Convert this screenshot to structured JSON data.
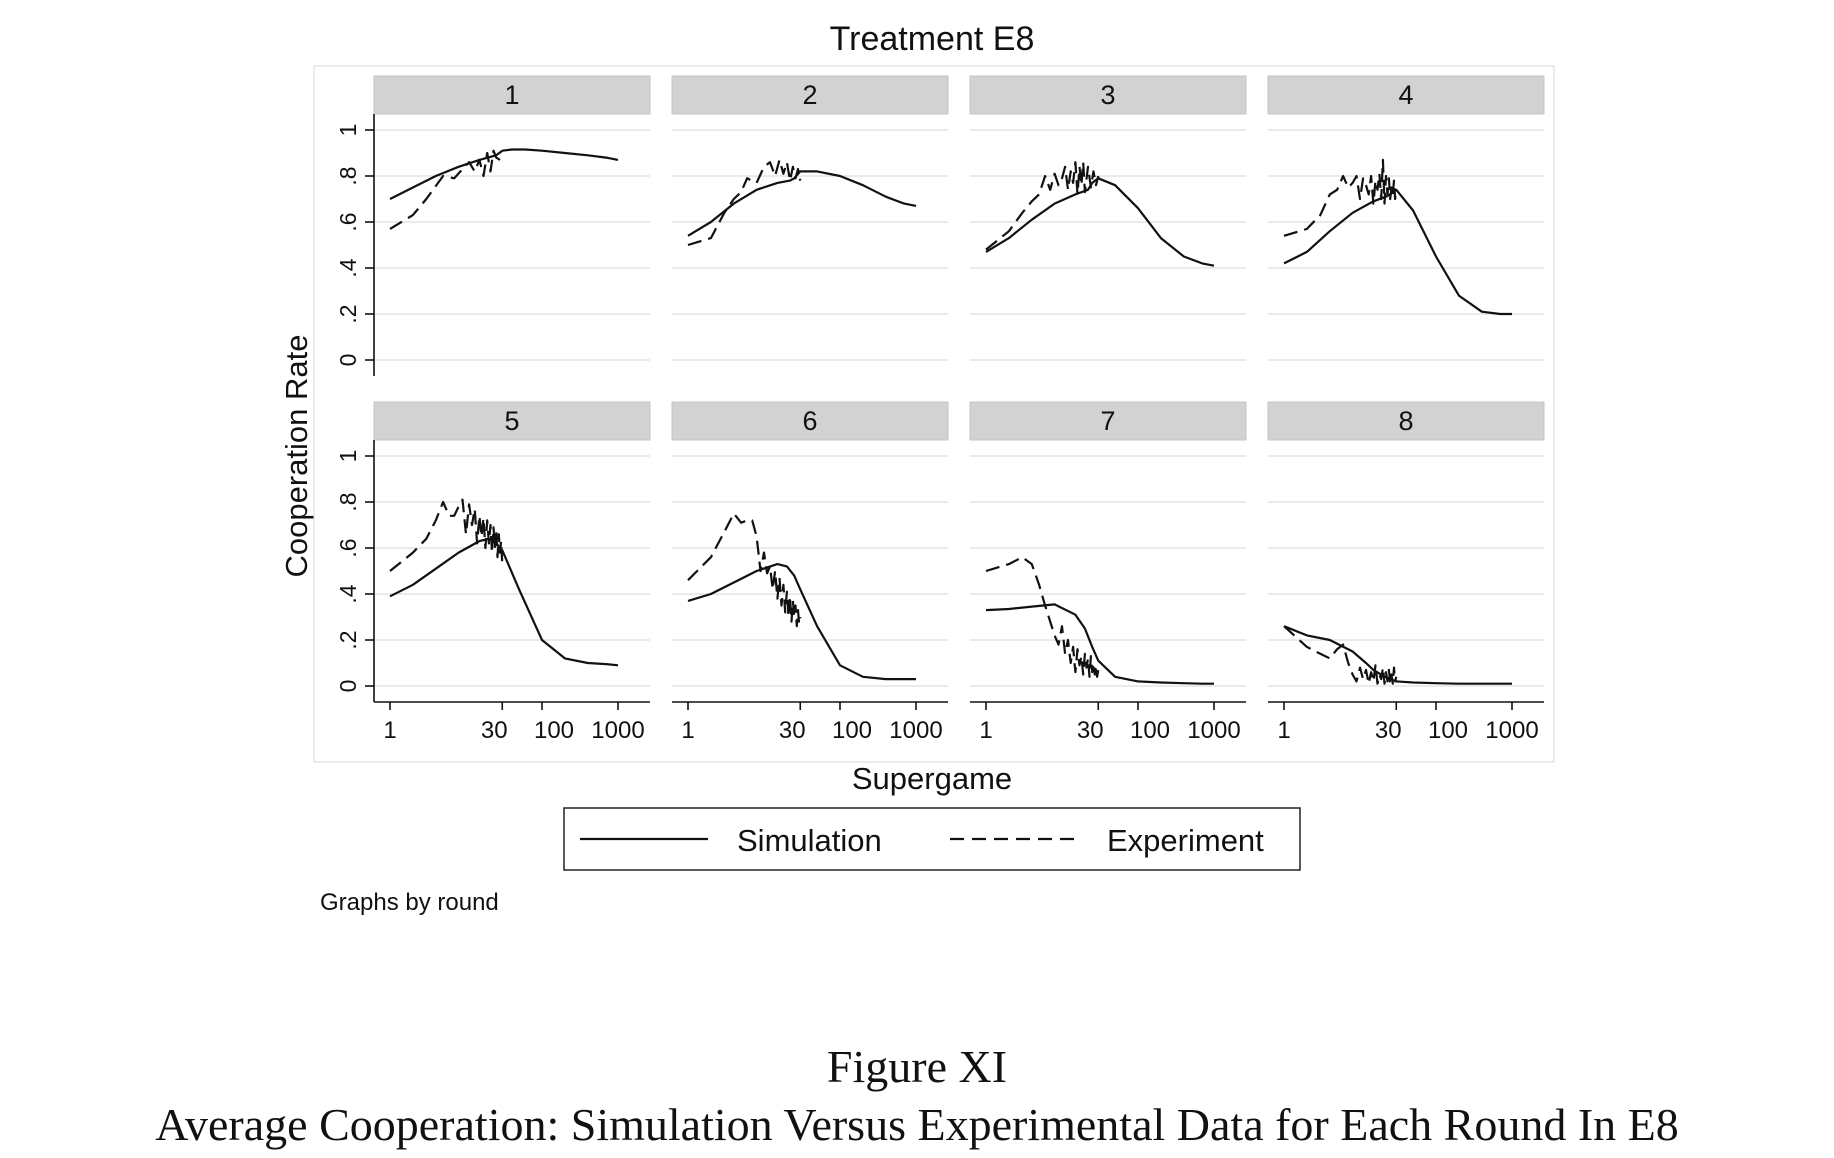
{
  "chart_data": {
    "type": "line",
    "title": "Treatment E8",
    "xlabel": "Supergame",
    "ylabel": "Cooperation Rate",
    "x_scale": "log",
    "xlim": [
      1,
      1000
    ],
    "ylim": [
      0,
      1
    ],
    "x_ticks": [
      1,
      30,
      100,
      1000
    ],
    "x_tick_labels": [
      "1",
      "30",
      "100",
      "1000"
    ],
    "y_ticks": [
      0,
      0.2,
      0.4,
      0.6,
      0.8,
      1
    ],
    "y_tick_labels": [
      "0",
      ".2",
      ".4",
      ".6",
      ".8",
      "1"
    ],
    "grid": true,
    "legend": {
      "placement": "bottom",
      "entries": [
        {
          "label": "Simulation",
          "style": "solid"
        },
        {
          "label": "Experiment",
          "style": "dashed"
        }
      ]
    },
    "note": "Graphs by round",
    "panels": [
      {
        "label": "1",
        "series": [
          {
            "name": "Simulation",
            "x": [
              1,
              2,
              4,
              8,
              15,
              25,
              30,
              40,
              60,
              100,
              200,
              400,
              700,
              1000
            ],
            "y": [
              0.7,
              0.75,
              0.8,
              0.84,
              0.87,
              0.89,
              0.91,
              0.915,
              0.915,
              0.91,
              0.9,
              0.89,
              0.88,
              0.87
            ]
          },
          {
            "name": "Experiment",
            "x": [
              1,
              2,
              3,
              5,
              7,
              9,
              11,
              13,
              15,
              17,
              19,
              21,
              23,
              25,
              28
            ],
            "y": [
              0.57,
              0.63,
              0.7,
              0.8,
              0.79,
              0.83,
              0.86,
              0.82,
              0.87,
              0.8,
              0.9,
              0.82,
              0.91,
              0.88,
              0.87
            ]
          }
        ]
      },
      {
        "label": "2",
        "series": [
          {
            "name": "Simulation",
            "x": [
              1,
              2,
              4,
              8,
              15,
              22,
              25,
              30,
              50,
              100,
              200,
              400,
              700,
              1000
            ],
            "y": [
              0.54,
              0.6,
              0.68,
              0.74,
              0.77,
              0.78,
              0.79,
              0.82,
              0.82,
              0.8,
              0.76,
              0.71,
              0.68,
              0.67
            ]
          },
          {
            "name": "Experiment",
            "x": [
              1,
              2,
              3,
              4,
              5,
              6,
              8,
              10,
              12,
              14,
              16,
              18,
              20,
              22,
              24,
              26,
              28,
              30
            ],
            "y": [
              0.5,
              0.53,
              0.64,
              0.7,
              0.73,
              0.79,
              0.77,
              0.84,
              0.86,
              0.8,
              0.87,
              0.81,
              0.86,
              0.78,
              0.84,
              0.79,
              0.83,
              0.78
            ]
          }
        ]
      },
      {
        "label": "3",
        "series": [
          {
            "name": "Simulation",
            "x": [
              1,
              2,
              4,
              8,
              15,
              22,
              25,
              30,
              50,
              100,
              200,
              400,
              700,
              1000
            ],
            "y": [
              0.47,
              0.53,
              0.61,
              0.68,
              0.72,
              0.74,
              0.77,
              0.79,
              0.76,
              0.66,
              0.53,
              0.45,
              0.42,
              0.41
            ]
          },
          {
            "name": "Experiment",
            "x": [
              1,
              2,
              3,
              4,
              5,
              6,
              7,
              8,
              9,
              10,
              11,
              12,
              13,
              14,
              15,
              16,
              17,
              18,
              19,
              20,
              22,
              24,
              26,
              28,
              30
            ],
            "y": [
              0.48,
              0.56,
              0.64,
              0.69,
              0.72,
              0.8,
              0.74,
              0.81,
              0.76,
              0.79,
              0.84,
              0.74,
              0.82,
              0.77,
              0.86,
              0.72,
              0.84,
              0.76,
              0.86,
              0.73,
              0.84,
              0.75,
              0.82,
              0.76,
              0.8
            ]
          }
        ]
      },
      {
        "label": "4",
        "series": [
          {
            "name": "Simulation",
            "x": [
              1,
              2,
              4,
              8,
              15,
              22,
              25,
              30,
              50,
              100,
              200,
              400,
              700,
              1000
            ],
            "y": [
              0.42,
              0.47,
              0.56,
              0.64,
              0.69,
              0.71,
              0.72,
              0.74,
              0.65,
              0.45,
              0.28,
              0.21,
              0.2,
              0.2
            ]
          },
          {
            "name": "Experiment",
            "x": [
              1,
              2,
              3,
              4,
              5,
              6,
              7,
              8,
              9,
              10,
              11,
              12,
              13,
              14,
              15,
              16,
              17,
              18,
              19,
              20,
              21,
              22,
              23,
              24,
              25,
              26,
              27,
              28,
              29,
              30
            ],
            "y": [
              0.54,
              0.57,
              0.63,
              0.72,
              0.74,
              0.8,
              0.75,
              0.77,
              0.8,
              0.7,
              0.79,
              0.76,
              0.72,
              0.8,
              0.68,
              0.78,
              0.74,
              0.81,
              0.7,
              0.87,
              0.68,
              0.8,
              0.72,
              0.79,
              0.7,
              0.75,
              0.72,
              0.78,
              0.7,
              0.74
            ]
          }
        ]
      },
      {
        "label": "5",
        "series": [
          {
            "name": "Simulation",
            "x": [
              1,
              2,
              4,
              8,
              15,
              20,
              25,
              30,
              50,
              100,
              200,
              400,
              700,
              1000
            ],
            "y": [
              0.39,
              0.44,
              0.51,
              0.58,
              0.63,
              0.64,
              0.62,
              0.59,
              0.42,
              0.2,
              0.12,
              0.1,
              0.095,
              0.09
            ]
          },
          {
            "name": "Experiment",
            "x": [
              1,
              2,
              3,
              4,
              5,
              6,
              7,
              8,
              9,
              10,
              11,
              12,
              13,
              14,
              15,
              16,
              17,
              18,
              19,
              20,
              21,
              22,
              23,
              24,
              25,
              26,
              27,
              28,
              29,
              30
            ],
            "y": [
              0.5,
              0.58,
              0.64,
              0.72,
              0.8,
              0.74,
              0.74,
              0.78,
              0.81,
              0.66,
              0.79,
              0.7,
              0.77,
              0.62,
              0.74,
              0.65,
              0.73,
              0.6,
              0.72,
              0.62,
              0.7,
              0.58,
              0.69,
              0.6,
              0.68,
              0.56,
              0.66,
              0.58,
              0.63,
              0.53
            ]
          }
        ]
      },
      {
        "label": "6",
        "series": [
          {
            "name": "Simulation",
            "x": [
              1,
              2,
              4,
              8,
              15,
              20,
              25,
              30,
              50,
              100,
              200,
              400,
              700,
              1000
            ],
            "y": [
              0.37,
              0.4,
              0.45,
              0.5,
              0.53,
              0.52,
              0.48,
              0.42,
              0.26,
              0.09,
              0.04,
              0.03,
              0.03,
              0.03
            ]
          },
          {
            "name": "Experiment",
            "x": [
              1,
              2,
              3,
              4,
              5,
              6,
              7,
              8,
              9,
              10,
              11,
              12,
              13,
              14,
              15,
              16,
              17,
              18,
              19,
              20,
              21,
              22,
              23,
              24,
              25,
              26,
              27,
              28,
              29,
              30
            ],
            "y": [
              0.46,
              0.56,
              0.67,
              0.75,
              0.71,
              0.72,
              0.72,
              0.65,
              0.5,
              0.58,
              0.49,
              0.52,
              0.42,
              0.5,
              0.38,
              0.47,
              0.35,
              0.44,
              0.32,
              0.41,
              0.3,
              0.39,
              0.28,
              0.37,
              0.3,
              0.35,
              0.26,
              0.33,
              0.27,
              0.3
            ]
          }
        ]
      },
      {
        "label": "7",
        "series": [
          {
            "name": "Simulation",
            "x": [
              1,
              2,
              4,
              8,
              15,
              20,
              25,
              30,
              50,
              100,
              200,
              400,
              700,
              1000
            ],
            "y": [
              0.33,
              0.335,
              0.345,
              0.355,
              0.31,
              0.25,
              0.17,
              0.11,
              0.04,
              0.02,
              0.015,
              0.012,
              0.01,
              0.01
            ]
          },
          {
            "name": "Experiment",
            "x": [
              1,
              2,
              3,
              4,
              5,
              6,
              7,
              8,
              9,
              10,
              11,
              12,
              13,
              14,
              15,
              16,
              17,
              18,
              19,
              20,
              21,
              22,
              23,
              24,
              25,
              26,
              27,
              28,
              29,
              30
            ],
            "y": [
              0.5,
              0.53,
              0.56,
              0.53,
              0.44,
              0.35,
              0.28,
              0.22,
              0.18,
              0.26,
              0.14,
              0.2,
              0.1,
              0.17,
              0.06,
              0.16,
              0.09,
              0.13,
              0.05,
              0.14,
              0.08,
              0.12,
              0.04,
              0.13,
              0.06,
              0.1,
              0.05,
              0.09,
              0.04,
              0.07
            ]
          }
        ]
      },
      {
        "label": "8",
        "series": [
          {
            "name": "Simulation",
            "x": [
              1,
              2,
              4,
              8,
              12,
              15,
              20,
              25,
              30,
              50,
              100,
              200,
              400,
              700,
              1000
            ],
            "y": [
              0.26,
              0.22,
              0.2,
              0.15,
              0.1,
              0.07,
              0.045,
              0.03,
              0.02,
              0.015,
              0.012,
              0.01,
              0.01,
              0.01,
              0.01
            ]
          },
          {
            "name": "Experiment",
            "x": [
              1,
              2,
              3,
              4,
              5,
              6,
              7,
              8,
              9,
              10,
              11,
              12,
              13,
              14,
              15,
              16,
              17,
              18,
              19,
              20,
              21,
              22,
              23,
              24,
              25,
              26,
              27,
              28,
              29,
              30
            ],
            "y": [
              0.26,
              0.17,
              0.14,
              0.12,
              0.16,
              0.18,
              0.1,
              0.05,
              0.02,
              0.08,
              0.03,
              0.07,
              0.01,
              0.06,
              0.02,
              0.09,
              0.01,
              0.05,
              0.03,
              0.08,
              0.01,
              0.06,
              0.02,
              0.07,
              0.01,
              0.05,
              0.01,
              0.08,
              0.02,
              0.04
            ]
          }
        ]
      }
    ]
  },
  "caption": {
    "label": "Figure XI",
    "text": "Average Cooperation: Simulation Versus Experimental Data for Each Round In E8"
  }
}
